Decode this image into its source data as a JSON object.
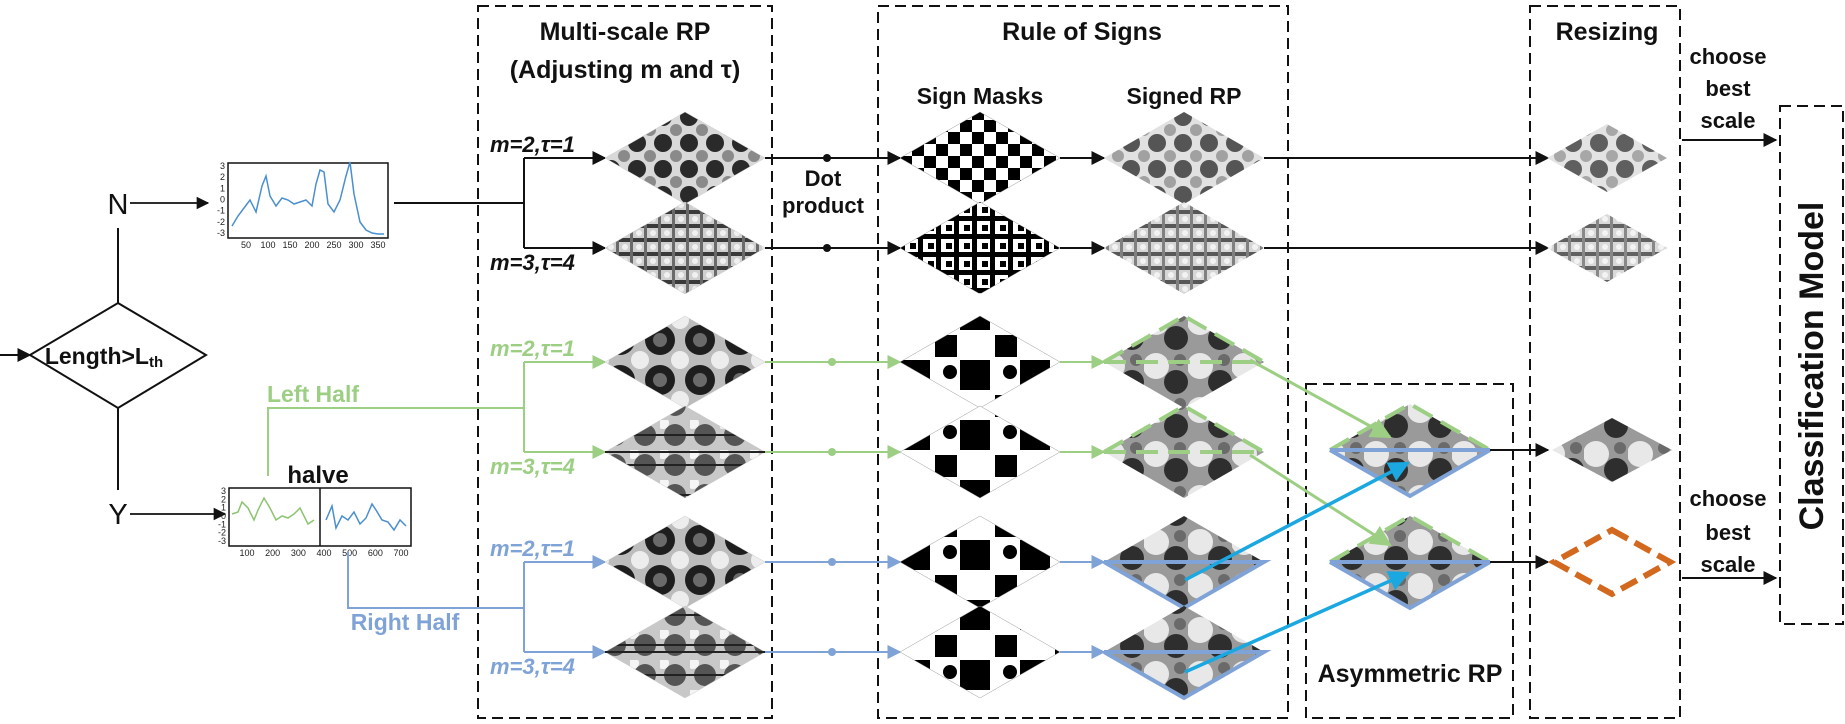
{
  "colors": {
    "black": "#111111",
    "green": "#9ccf83",
    "blue": "#7fa3d6",
    "cyan": "#1ba7e0",
    "orange": "#d2691e",
    "series_blue": "#4a8fd0",
    "series_green": "#8cc472"
  },
  "headers": {
    "multiscale_line1": "Multi-scale RP",
    "multiscale_line2": "(Adjusting m and τ)",
    "rule_of_signs": "Rule of Signs",
    "sign_masks": "Sign Masks",
    "signed_rp": "Signed RP",
    "resizing": "Resizing",
    "asymmetric_rp": "Asymmetric RP",
    "classification_model": "Classification Model"
  },
  "decision": {
    "label": "Length>L",
    "subscript": "th",
    "no": "N",
    "yes": "Y"
  },
  "labels": {
    "halve": "halve",
    "left_half": "Left Half",
    "right_half": "Right Half",
    "dot_product_line1": "Dot",
    "dot_product_line2": "product",
    "choose1": "choose",
    "best1": "best",
    "scale1": "scale",
    "choose2": "choose",
    "best2": "best",
    "scale2": "scale"
  },
  "params": {
    "p1": "m=2,τ=1",
    "p2": "m=3,τ=4",
    "p3": "m=2,τ=1",
    "p4": "m=3,τ=4",
    "p5": "m=2,τ=1",
    "p6": "m=3,τ=4"
  },
  "plot_full": {
    "y_ticks": [
      "3",
      "2",
      "1",
      "0",
      "-1",
      "-2",
      "-3"
    ],
    "x_ticks": [
      "50",
      "100",
      "150",
      "200",
      "250",
      "300",
      "350"
    ]
  },
  "plot_half": {
    "y_ticks": [
      "3",
      "2",
      "1",
      "0",
      "-1",
      "-2",
      "-3"
    ],
    "x_ticks": [
      "100",
      "200",
      "300",
      "400",
      "500",
      "600",
      "700"
    ]
  }
}
